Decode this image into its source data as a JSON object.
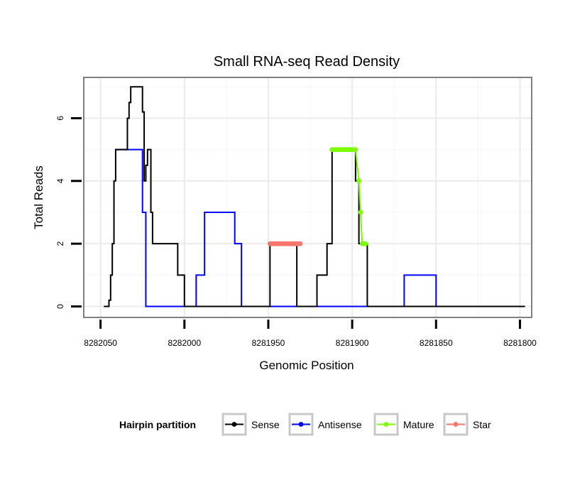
{
  "chart_data": {
    "type": "line",
    "title": "Small RNA-seq Read Density",
    "xlabel": "Genomic Position",
    "ylabel": "Total Reads",
    "xlim": [
      8282060,
      8281793
    ],
    "ylim": [
      -0.35,
      7.3
    ],
    "x_reversed": true,
    "x_ticks": [
      8282050,
      8282000,
      8281950,
      8281900,
      8281850,
      8281800
    ],
    "x_tick_labels": [
      "8282050",
      "8282000",
      "8281950",
      "8281900",
      "8281850",
      "8281800"
    ],
    "y_ticks": [
      0,
      2,
      4,
      6
    ],
    "y_tick_labels": [
      "0",
      "2",
      "4",
      "6"
    ],
    "grid": true,
    "legend": {
      "title": "Hairpin partition",
      "position": "bottom",
      "entries": [
        {
          "label": "Sense",
          "color": "#000000"
        },
        {
          "label": "Antisense",
          "color": "#0000ff"
        },
        {
          "label": "Mature",
          "color": "#7cfc00"
        },
        {
          "label": "Star",
          "color": "#f8766d"
        }
      ]
    },
    "series": [
      {
        "name": "Sense",
        "color": "#000000",
        "x": [
          8282048,
          8282045,
          8282045,
          8282044,
          8282044,
          8282043,
          8282043,
          8282042,
          8282042,
          8282041,
          8282041,
          8282034,
          8282034,
          8282033,
          8282033,
          8282032,
          8282032,
          8282025,
          8282025,
          8282024,
          8282024,
          8282023,
          8282023,
          8282022,
          8282022,
          8282020,
          8282020,
          8282019,
          8282019,
          8282004,
          8282004,
          8282000,
          8282000,
          8281994,
          8281994,
          8281987,
          8281987,
          8281949,
          8281949,
          8281933,
          8281933,
          8281929,
          8281929,
          8281921,
          8281921,
          8281915,
          8281915,
          8281912,
          8281912,
          8281898,
          8281898,
          8281896,
          8281896,
          8281891,
          8281891,
          8281797
        ],
        "y": [
          0,
          0,
          0.2,
          0.2,
          1,
          1,
          2,
          2,
          4,
          4,
          5,
          5,
          6,
          6,
          6.5,
          6.5,
          7,
          7,
          6.2,
          6.2,
          4,
          4,
          4.5,
          4.5,
          5,
          5,
          3,
          3,
          2,
          2,
          1,
          1,
          0,
          0,
          0,
          0,
          0,
          0,
          2,
          2,
          0,
          0,
          0,
          0,
          1,
          1,
          2,
          2,
          5,
          5,
          4,
          4,
          2,
          2,
          0,
          0
        ]
      },
      {
        "name": "Antisense",
        "color": "#0000ff",
        "x": [
          8282041,
          8282041,
          8282025,
          8282025,
          8282023,
          8282023,
          8281993,
          8281993,
          8281988,
          8281988,
          8281985,
          8281985,
          8281970,
          8281970,
          8281966,
          8281966,
          8281935,
          8281935,
          8281908,
          8281908,
          8281869,
          8281869,
          8281850,
          8281850,
          8281797
        ],
        "y": [
          5,
          5,
          5,
          3,
          3,
          0,
          0,
          1,
          1,
          3,
          3,
          3,
          3,
          2,
          2,
          0,
          0,
          0,
          0,
          0,
          0,
          1,
          1,
          0,
          0
        ]
      },
      {
        "name": "Mature",
        "color": "#7cfc00",
        "x": [
          8281912,
          8281911,
          8281910,
          8281909,
          8281908,
          8281907,
          8281906,
          8281905,
          8281904,
          8281903,
          8281902,
          8281901,
          8281900,
          8281899,
          8281898,
          8281896,
          8281895,
          8281894,
          8281893,
          8281892
        ],
        "y": [
          5,
          5,
          5,
          5,
          5,
          5,
          5,
          5,
          5,
          5,
          5,
          5,
          5,
          5,
          5,
          4,
          3,
          2,
          2,
          2
        ]
      },
      {
        "name": "Star",
        "color": "#f8766d",
        "x": [
          8281949,
          8281948,
          8281947,
          8281946,
          8281945,
          8281944,
          8281943,
          8281942,
          8281941,
          8281940,
          8281939,
          8281938,
          8281937,
          8281936,
          8281935,
          8281934,
          8281933,
          8281932,
          8281931
        ],
        "y": [
          2,
          2,
          2,
          2,
          2,
          2,
          2,
          2,
          2,
          2,
          2,
          2,
          2,
          2,
          2,
          2,
          2,
          2,
          2
        ]
      }
    ]
  }
}
